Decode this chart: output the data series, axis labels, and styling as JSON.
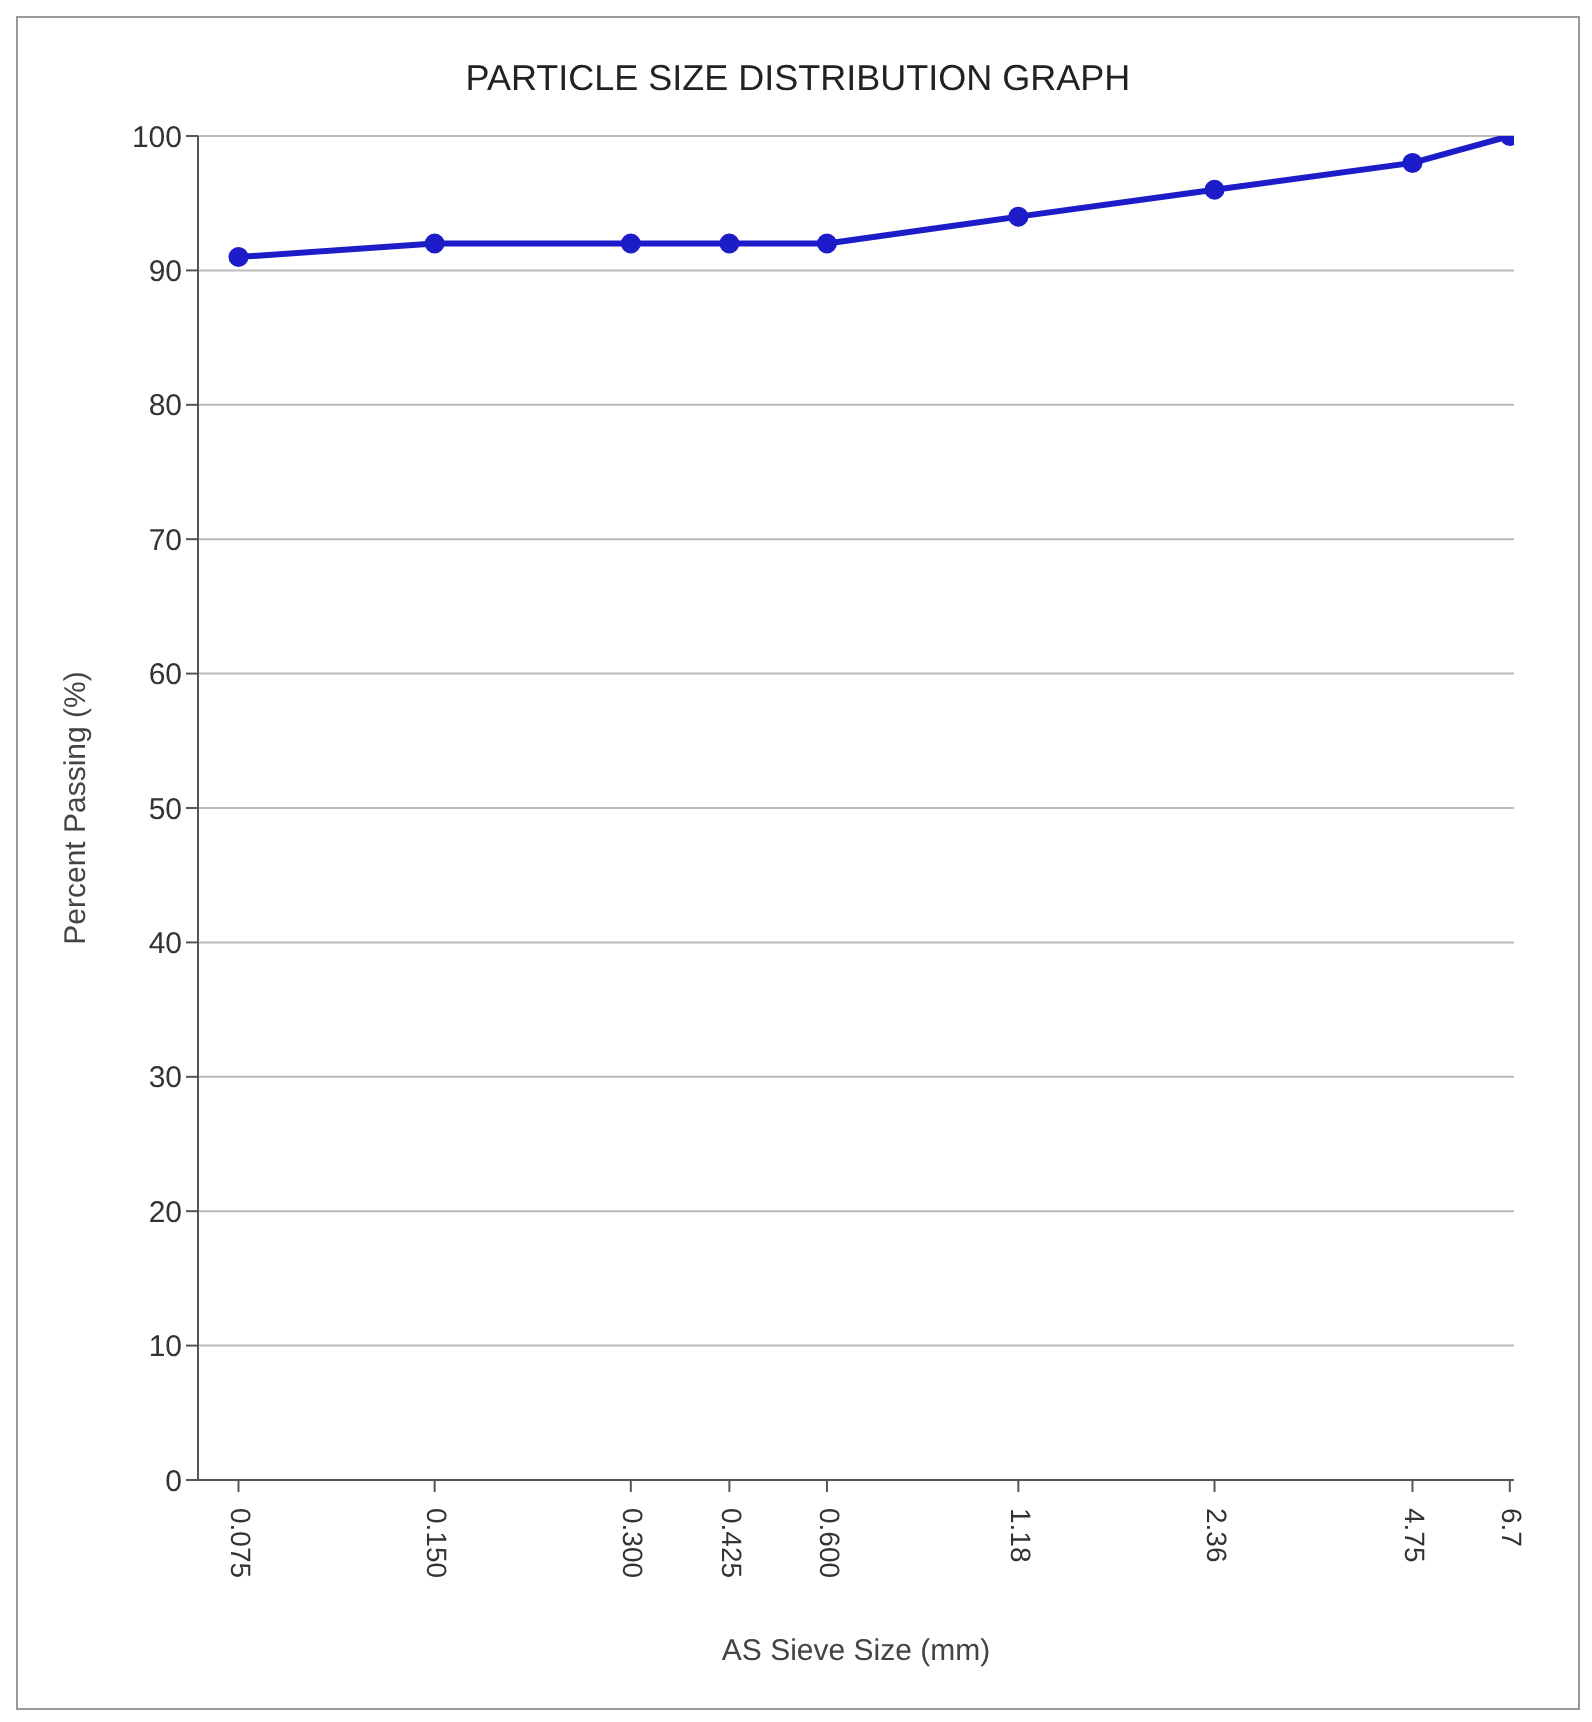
{
  "chart_data": {
    "type": "line",
    "title": "PARTICLE SIZE DISTRIBUTION GRAPH",
    "xlabel": "AS Sieve Size (mm)",
    "ylabel": "Percent Passing (%)",
    "x": [
      0.075,
      0.15,
      0.3,
      0.425,
      0.6,
      1.18,
      2.36,
      4.75,
      6.7
    ],
    "series": [
      {
        "color": "#1c1cc8",
        "values": [
          91,
          92,
          92,
          92,
          92,
          94,
          96,
          98,
          100
        ]
      }
    ],
    "log": "x",
    "xlim": [
      0.065,
      6.8
    ],
    "xticks": [
      {
        "value": 0.075,
        "label": "0.075"
      },
      {
        "value": 0.15,
        "label": "0.150"
      },
      {
        "value": 0.3,
        "label": "0.300"
      },
      {
        "value": 0.425,
        "label": "0.425"
      },
      {
        "value": 0.6,
        "label": "0.600"
      },
      1.18,
      2.36,
      4.75,
      6.7
    ],
    "ylim": [
      0,
      100
    ],
    "yticks": [
      0,
      10,
      20,
      30,
      40,
      50,
      60,
      70,
      80,
      90,
      100
    ],
    "grid": "y",
    "legend": false,
    "marker": "circle",
    "line_style": "solid"
  }
}
